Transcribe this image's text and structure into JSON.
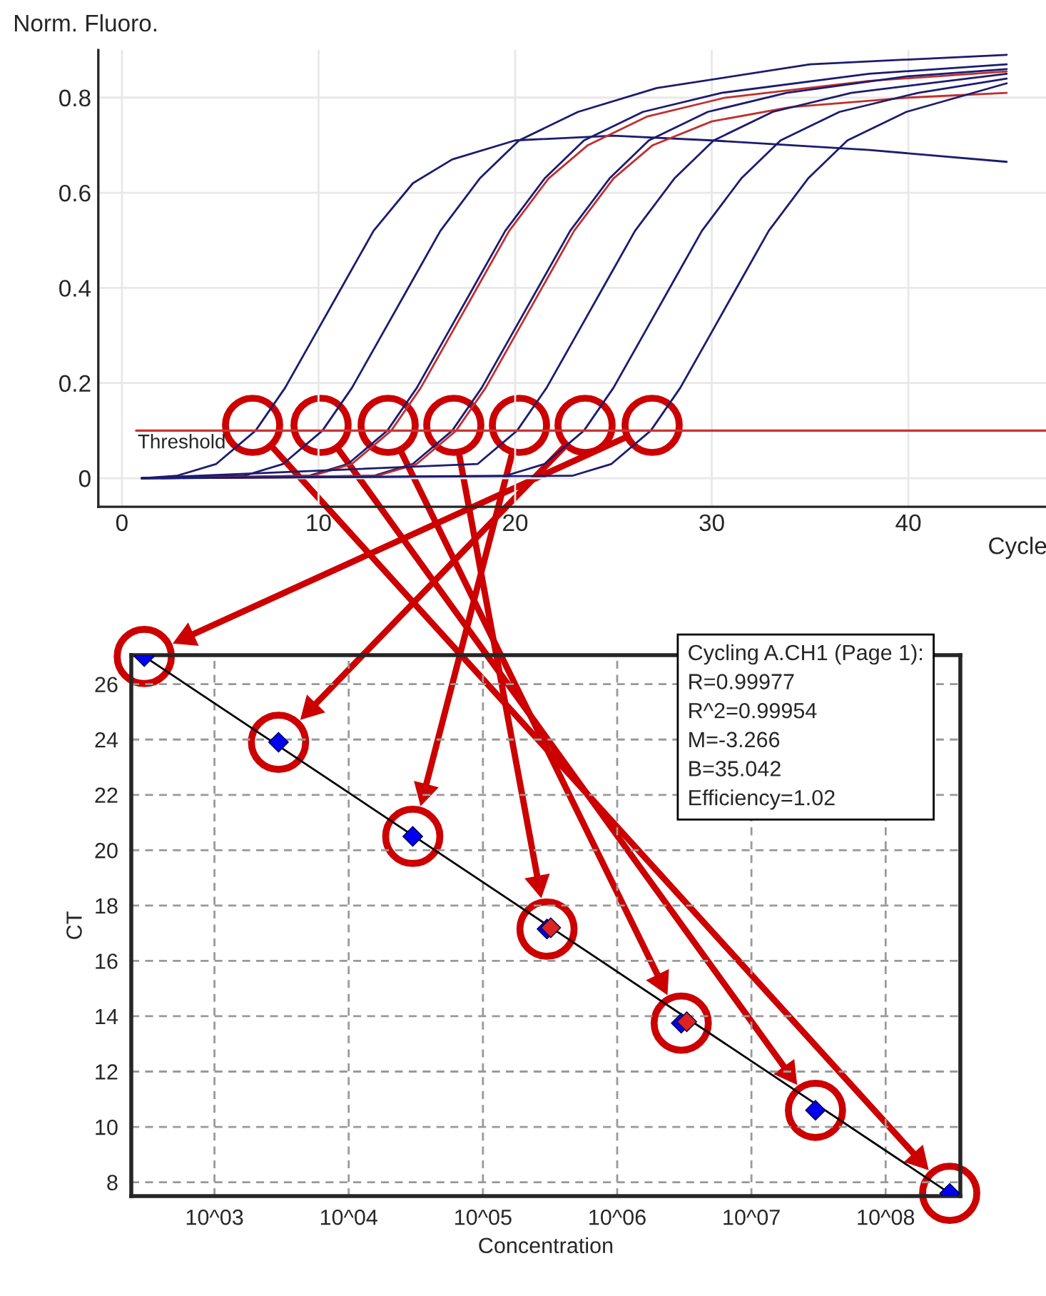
{
  "chart_data": [
    {
      "type": "line",
      "ylabel": "Norm. Fluoro.",
      "xlabel": "Cycle",
      "xlim": [
        -1.2,
        47
      ],
      "ylim": [
        -0.06,
        0.9
      ],
      "xticks": [
        0,
        10,
        20,
        30,
        40
      ],
      "yticks": [
        0,
        0.2,
        0.4,
        0.6,
        0.8
      ],
      "grid": true,
      "ref_lines": [
        {
          "axis": "y",
          "value": 0.1,
          "label": "Threshold",
          "color": "#cc3333"
        }
      ],
      "series": [
        {
          "color": "#1c1c70",
          "x": [
            1,
            2.8,
            4.8,
            6.8,
            8.3,
            9.8,
            11.3,
            12.8,
            14.8,
            16.8,
            20,
            25,
            30,
            38,
            45
          ],
          "values": [
            0,
            0.005,
            0.03,
            0.1,
            0.19,
            0.3,
            0.41,
            0.52,
            0.62,
            0.67,
            0.71,
            0.72,
            0.71,
            0.69,
            0.665
          ]
        },
        {
          "color": "#1c1c70",
          "x": [
            1,
            6.2,
            8.2,
            10.2,
            11.7,
            13.2,
            14.7,
            16.2,
            18.2,
            20.2,
            23.2,
            27.2,
            35,
            45
          ],
          "values": [
            0,
            0.005,
            0.03,
            0.1,
            0.19,
            0.3,
            0.41,
            0.52,
            0.63,
            0.71,
            0.77,
            0.82,
            0.87,
            0.89
          ]
        },
        {
          "color": "#1c1c70",
          "x": [
            1,
            9.5,
            11.5,
            13.5,
            15,
            16.5,
            18,
            19.5,
            21.5,
            23.5,
            26.5,
            30.5,
            38,
            45
          ],
          "values": [
            0,
            0.005,
            0.03,
            0.1,
            0.19,
            0.3,
            0.41,
            0.52,
            0.63,
            0.71,
            0.77,
            0.81,
            0.85,
            0.87
          ]
        },
        {
          "color": "#c03030",
          "x": [
            2,
            9.7,
            11.7,
            13.7,
            15.2,
            16.7,
            18.2,
            19.7,
            21.7,
            23.7,
            26.7,
            30.7,
            38,
            45
          ],
          "values": [
            0,
            0.005,
            0.03,
            0.1,
            0.19,
            0.3,
            0.41,
            0.52,
            0.63,
            0.7,
            0.76,
            0.8,
            0.835,
            0.855
          ]
        },
        {
          "color": "#1c1c70",
          "x": [
            1,
            12.8,
            14.8,
            16.8,
            18.3,
            19.8,
            21.3,
            22.8,
            24.8,
            26.8,
            29.8,
            33.8,
            40,
            45
          ],
          "values": [
            0,
            0.005,
            0.03,
            0.1,
            0.19,
            0.3,
            0.41,
            0.52,
            0.63,
            0.71,
            0.77,
            0.81,
            0.845,
            0.86
          ]
        },
        {
          "color": "#c03030",
          "x": [
            2,
            13,
            15,
            17,
            18.5,
            20,
            21.5,
            23,
            25,
            27,
            30,
            34,
            40,
            45
          ],
          "values": [
            0,
            0.005,
            0.03,
            0.1,
            0.19,
            0.3,
            0.41,
            0.52,
            0.63,
            0.7,
            0.75,
            0.78,
            0.8,
            0.81
          ]
        },
        {
          "color": "#1c1c70",
          "x": [
            1,
            18.1,
            20.1,
            21.6,
            23.1,
            24.6,
            26.1,
            28.1,
            30.1,
            33.1,
            37.1,
            45
          ],
          "values": [
            0,
            0.03,
            0.1,
            0.19,
            0.3,
            0.41,
            0.52,
            0.63,
            0.71,
            0.77,
            0.81,
            0.85
          ]
        },
        {
          "color": "#1c1c70",
          "x": [
            1,
            19.5,
            21.5,
            23.5,
            25,
            26.5,
            28,
            29.5,
            31.5,
            33.5,
            36.5,
            40.5,
            45
          ],
          "values": [
            0,
            0.005,
            0.03,
            0.1,
            0.19,
            0.3,
            0.41,
            0.52,
            0.63,
            0.71,
            0.77,
            0.81,
            0.84
          ]
        },
        {
          "color": "#1c1c70",
          "x": [
            1,
            22.9,
            24.9,
            26.9,
            28.4,
            29.9,
            31.4,
            32.9,
            34.9,
            36.9,
            39.9,
            45
          ],
          "values": [
            0,
            0.005,
            0.03,
            0.1,
            0.19,
            0.3,
            0.41,
            0.52,
            0.63,
            0.71,
            0.77,
            0.83
          ]
        }
      ]
    },
    {
      "type": "scatter",
      "xlabel": "Concentration",
      "ylabel": "CT",
      "log": "x",
      "grid": true,
      "xlim": [
        240,
        360000000
      ],
      "ylim": [
        7.5,
        27.05
      ],
      "xticks": [
        {
          "value": 1000,
          "label": "10^03"
        },
        {
          "value": 10000,
          "label": "10^04"
        },
        {
          "value": 100000,
          "label": "10^05"
        },
        {
          "value": 1000000,
          "label": "10^06"
        },
        {
          "value": 10000000,
          "label": "10^07"
        },
        {
          "value": 100000000,
          "label": "10^08"
        }
      ],
      "yticks": [
        8,
        10,
        12,
        14,
        16,
        18,
        20,
        22,
        24,
        26
      ],
      "annotations": [
        "Cycling A.CH1 (Page 1):",
        "R=0.99977",
        "R^2=0.99954",
        "M=-3.266",
        "B=35.042",
        "Efficiency=1.02"
      ],
      "series": [
        {
          "type": "scatter",
          "marker": "diamond",
          "color": "#0000ee",
          "x": [
            300,
            3000,
            30000,
            300000,
            3000000,
            30000000,
            300000000
          ],
          "values": [
            27.0,
            23.9,
            20.5,
            17.15,
            13.75,
            10.6,
            7.6
          ]
        },
        {
          "type": "line",
          "color": "#000000",
          "x": [
            292,
            320000000
          ],
          "values": [
            27.04,
            7.51
          ]
        },
        {
          "type": "scatter",
          "marker": "diamond",
          "color": "#dd2222",
          "x": [
            320000,
            3300000
          ],
          "values": [
            17.2,
            13.8
          ]
        }
      ]
    }
  ]
}
